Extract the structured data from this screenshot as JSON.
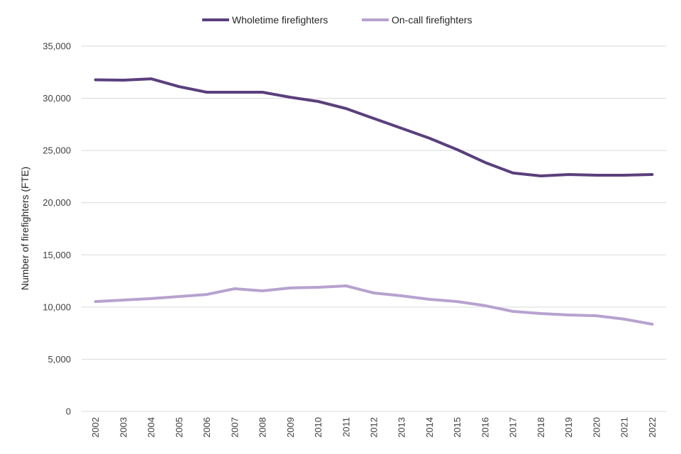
{
  "chart_data": {
    "type": "line",
    "title": "",
    "xlabel": "",
    "ylabel": "Number of firefighters (FTE)",
    "ylim": [
      0,
      35000
    ],
    "yticks": [
      0,
      5000,
      10000,
      15000,
      20000,
      25000,
      30000,
      35000
    ],
    "ytick_labels": [
      "0",
      "5,000",
      "10,000",
      "15,000",
      "20,000",
      "25,000",
      "30,000",
      "35,000"
    ],
    "grid": true,
    "legend_position": "top-center",
    "categories": [
      "2002",
      "2003",
      "2004",
      "2005",
      "2006",
      "2007",
      "2008",
      "2009",
      "2010",
      "2011",
      "2012",
      "2013",
      "2014",
      "2015",
      "2016",
      "2017",
      "2018",
      "2019",
      "2020",
      "2021",
      "2022"
    ],
    "series": [
      {
        "name": "Wholetime firefighters",
        "color": "#5a3f7c",
        "values": [
          31770,
          31740,
          31870,
          31120,
          30580,
          30580,
          30580,
          30100,
          29700,
          29020,
          28070,
          27120,
          26170,
          25080,
          23850,
          22840,
          22560,
          22700,
          22630,
          22630,
          22700
        ]
      },
      {
        "name": "On-call firefighters",
        "color": "#b7a2cf",
        "values": [
          10530,
          10670,
          10810,
          11010,
          11210,
          11760,
          11550,
          11830,
          11890,
          12030,
          11350,
          11080,
          10740,
          10530,
          10130,
          9580,
          9380,
          9240,
          9170,
          8840,
          8360
        ]
      }
    ]
  }
}
